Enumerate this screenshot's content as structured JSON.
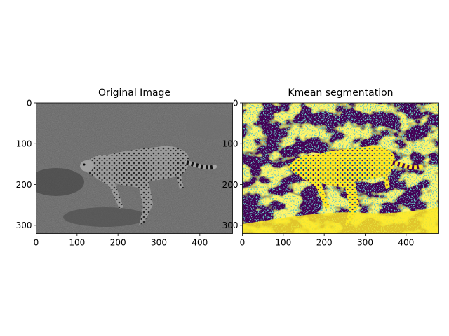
{
  "figure": {
    "background": "#ffffff"
  },
  "chart_data": [
    {
      "type": "heatmap",
      "title": "Original Image",
      "colormap": "gray",
      "image_shape": [
        320,
        480
      ],
      "xlim": [
        0,
        480
      ],
      "ylim": [
        320,
        0
      ],
      "xticks": [
        0,
        100,
        200,
        300,
        400
      ],
      "yticks": [
        0,
        100,
        200,
        300
      ],
      "content": "grayscale photo of a running cheetah on a grassy field"
    },
    {
      "type": "heatmap",
      "title": "Kmean segmentation",
      "colormap": "viridis",
      "clusters": 2,
      "cluster_colors": [
        "#440154",
        "#fde725"
      ],
      "edge_color": "#21918c",
      "image_shape": [
        320,
        480
      ],
      "xlim": [
        0,
        480
      ],
      "ylim": [
        320,
        0
      ],
      "xticks": [
        0,
        100,
        200,
        300,
        400
      ],
      "yticks": [
        0,
        100,
        200,
        300
      ],
      "content": "binary k-means segmentation of the cheetah image"
    }
  ]
}
